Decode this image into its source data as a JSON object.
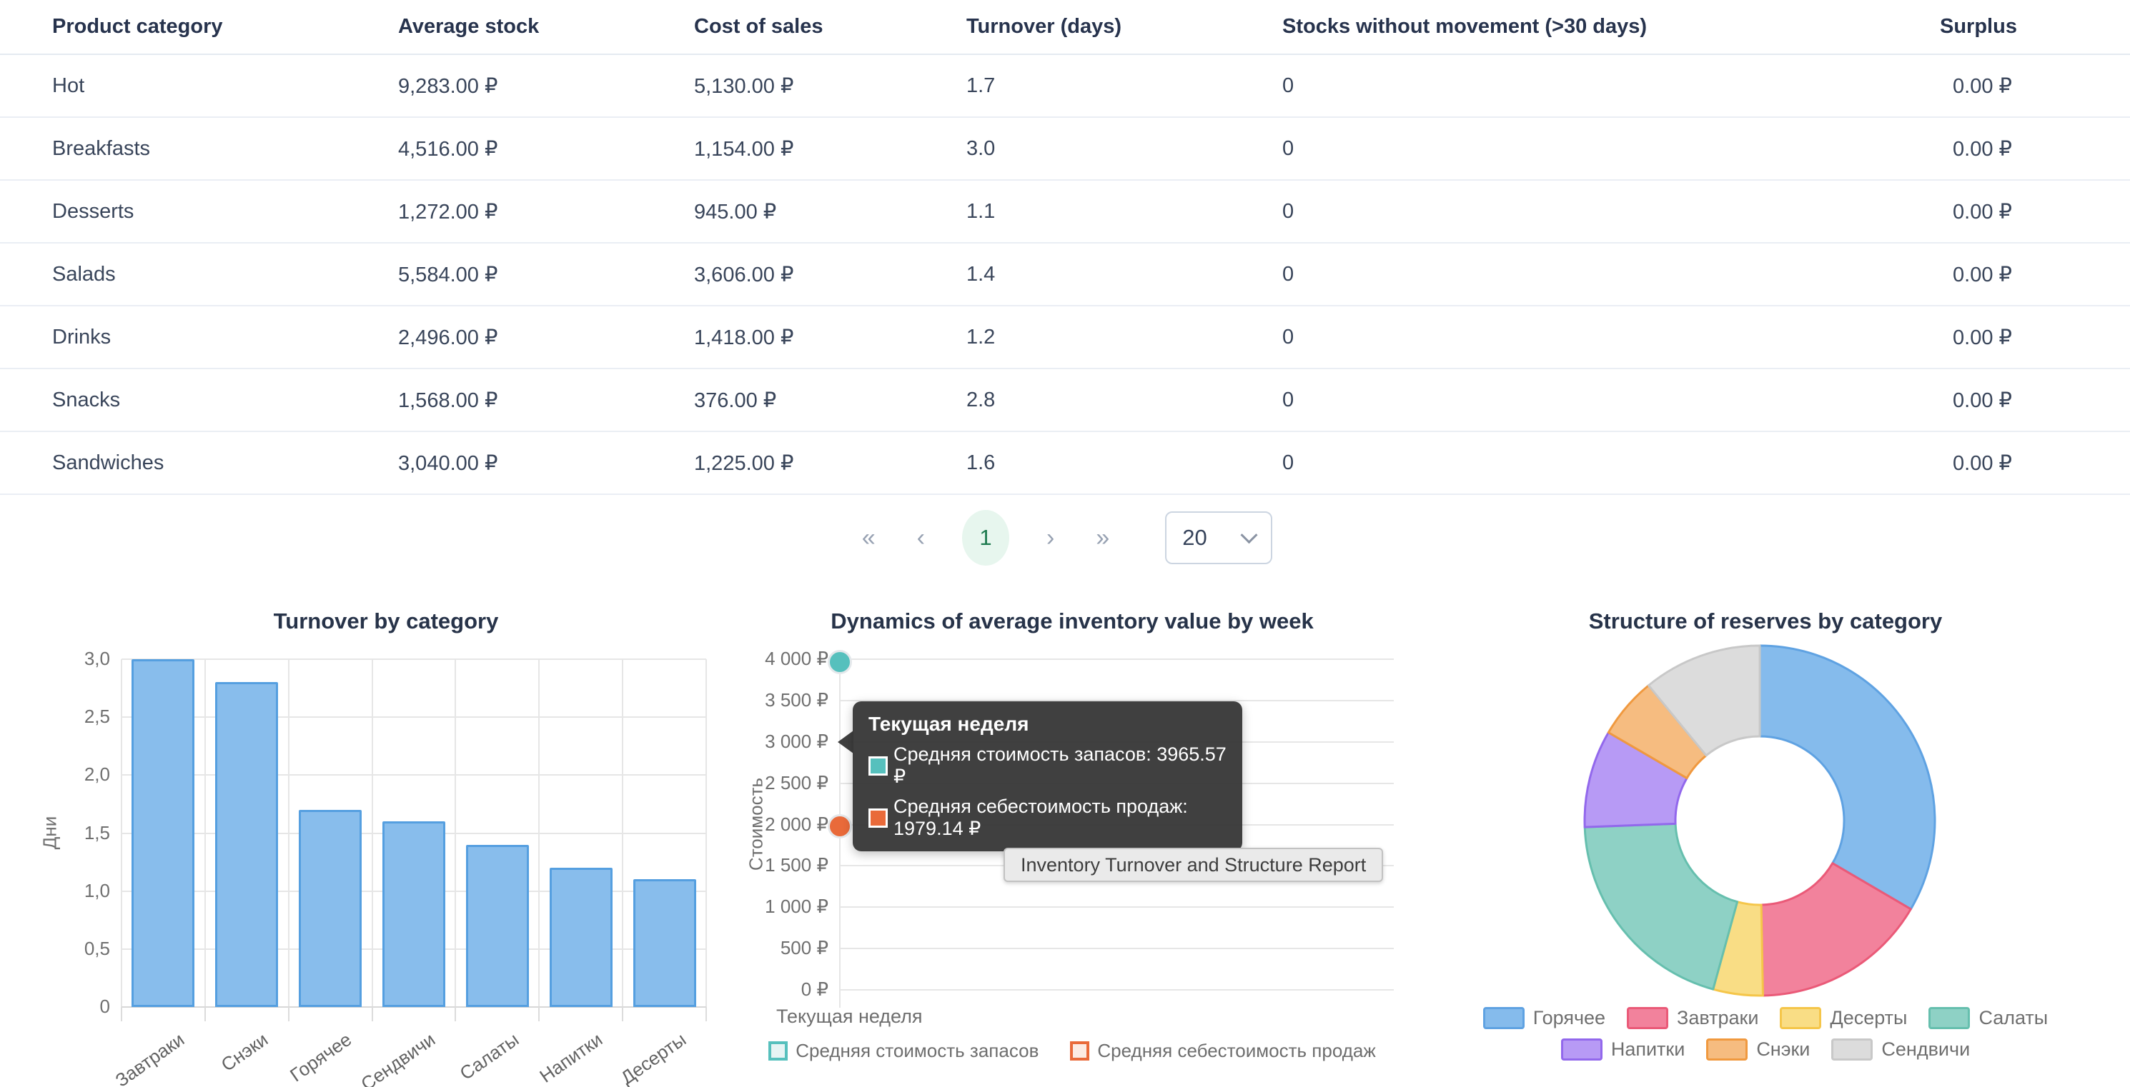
{
  "table": {
    "columns": [
      "Product category",
      "Average stock",
      "Cost of sales",
      "Turnover (days)",
      "Stocks without movement (>30 days)",
      "Surplus"
    ],
    "rows": [
      [
        "Hot",
        "9,283.00 ₽",
        "5,130.00 ₽",
        "1.7",
        "0",
        "0.00 ₽"
      ],
      [
        "Breakfasts",
        "4,516.00 ₽",
        "1,154.00 ₽",
        "3.0",
        "0",
        "0.00 ₽"
      ],
      [
        "Desserts",
        "1,272.00 ₽",
        "945.00 ₽",
        "1.1",
        "0",
        "0.00 ₽"
      ],
      [
        "Salads",
        "5,584.00 ₽",
        "3,606.00 ₽",
        "1.4",
        "0",
        "0.00 ₽"
      ],
      [
        "Drinks",
        "2,496.00 ₽",
        "1,418.00 ₽",
        "1.2",
        "0",
        "0.00 ₽"
      ],
      [
        "Snacks",
        "1,568.00 ₽",
        "376.00 ₽",
        "2.8",
        "0",
        "0.00 ₽"
      ],
      [
        "Sandwiches",
        "3,040.00 ₽",
        "1,225.00 ₽",
        "1.6",
        "0",
        "0.00 ₽"
      ]
    ]
  },
  "pagination": {
    "first": "«",
    "prev": "‹",
    "page": "1",
    "next": "›",
    "last": "»",
    "page_size": "20"
  },
  "chart_data": [
    {
      "type": "bar",
      "title": "Turnover by category",
      "ylabel": "Дни",
      "categories": [
        "Завтраки",
        "Снэки",
        "Горячее",
        "Сендвичи",
        "Салаты",
        "Напитки",
        "Десерты"
      ],
      "values": [
        3.0,
        2.8,
        1.7,
        1.6,
        1.4,
        1.2,
        1.1
      ],
      "ylim": [
        0,
        3.0
      ],
      "ytick_labels": [
        "0",
        "0,5",
        "1,0",
        "1,5",
        "2,0",
        "2,5",
        "3,0"
      ],
      "grid": "on",
      "bar_fill": "#88bdec",
      "bar_stroke": "#559fe0"
    },
    {
      "type": "scatter",
      "title": "Dynamics of average inventory value by week",
      "ylabel": "Стоимость",
      "x_categories": [
        "Текущая неделя"
      ],
      "ylim": [
        0,
        4000
      ],
      "ytick_labels": [
        "0 ₽",
        "500 ₽",
        "1 000 ₽",
        "1 500 ₽",
        "2 000 ₽",
        "2 500 ₽",
        "3 000 ₽",
        "3 500 ₽",
        "4 000 ₽"
      ],
      "grid": "on",
      "legend_position": "bottom",
      "series": [
        {
          "name": "Средняя стоимость запасов",
          "values": [
            3965.57
          ],
          "color": "#56c0bd",
          "legend_fill": "#e6f4f4"
        },
        {
          "name": "Средняя себестоимость продаж",
          "values": [
            1979.14
          ],
          "color": "#e96a3a",
          "legend_fill": "#fcebe3"
        }
      ],
      "tooltip": {
        "title": "Текущая неделя",
        "lines": [
          {
            "label": "Средняя стоимость запасов",
            "value": "3965.57 ₽"
          },
          {
            "label": "Средняя себестоимость продаж",
            "value": "1979.14 ₽"
          }
        ]
      },
      "hover_badge": "Inventory Turnover and Structure Report"
    },
    {
      "type": "pie",
      "title": "Structure of reserves by category",
      "donut": true,
      "legend_position": "bottom",
      "slices": [
        {
          "label": "Горячее",
          "pct": 33.44,
          "fill": "#85bbec",
          "stroke": "#5fa2e2"
        },
        {
          "label": "Завтраки",
          "pct": 16.27,
          "fill": "#f2829c",
          "stroke": "#ea5a78"
        },
        {
          "label": "Десерты",
          "pct": 4.58,
          "fill": "#f9dd85",
          "stroke": "#f5c64a"
        },
        {
          "label": "Салаты",
          "pct": 20.12,
          "fill": "#8ed1c5",
          "stroke": "#66bfae"
        },
        {
          "label": "Напитки",
          "pct": 8.99,
          "fill": "#b79af5",
          "stroke": "#9268ec"
        },
        {
          "label": "Снэки",
          "pct": 5.65,
          "fill": "#f6bc80",
          "stroke": "#f0993f"
        },
        {
          "label": "Сендвичи",
          "pct": 10.95,
          "fill": "#dcdcdc",
          "stroke": "#c8c8c8"
        }
      ]
    }
  ]
}
